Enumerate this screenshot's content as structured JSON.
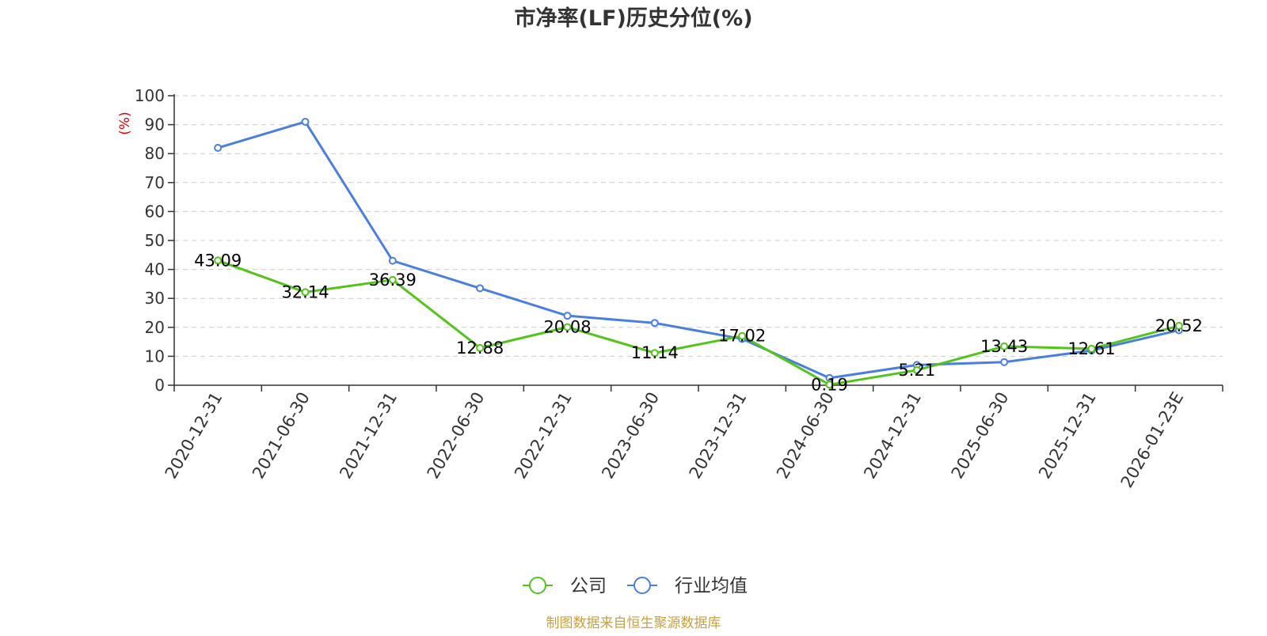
{
  "chart_data": {
    "type": "line",
    "title": "市净率(LF)历史分位(%)",
    "ylabel": "(%)",
    "xlabel": "",
    "categories": [
      "2020-12-31",
      "2021-06-30",
      "2021-12-31",
      "2022-06-30",
      "2022-12-31",
      "2023-06-30",
      "2023-12-31",
      "2024-06-30",
      "2024-12-31",
      "2025-06-30",
      "2025-12-31",
      "2026-01-23E"
    ],
    "ylim": [
      0,
      100
    ],
    "yticks": [
      "0",
      "10",
      "20",
      "30",
      "40",
      "50",
      "60",
      "70",
      "80",
      "90",
      "100"
    ],
    "grid": true,
    "legend_position": "bottom-center",
    "series": [
      {
        "name": "公司",
        "color": "#52c41a",
        "values": [
          43.09,
          32.14,
          36.39,
          12.88,
          20.08,
          11.14,
          17.02,
          0.19,
          5.21,
          13.43,
          12.61,
          20.52
        ],
        "labels": [
          "43.09",
          "32.14",
          "36.39",
          "12.88",
          "20.08",
          "11.14",
          "17.02",
          "0.19",
          "5.21",
          "13.43",
          "12.61",
          "20.52"
        ]
      },
      {
        "name": "行业均值",
        "color": "#4a7fe0",
        "values": [
          82.0,
          91.0,
          43.0,
          33.5,
          24.0,
          21.5,
          16.0,
          2.5,
          7.0,
          8.0,
          12.0,
          19.0
        ]
      }
    ]
  },
  "footer": {
    "source": "制图数据来自恒生聚源数据库",
    "color": "#c8a040"
  },
  "ylabel_color": "#e00000"
}
